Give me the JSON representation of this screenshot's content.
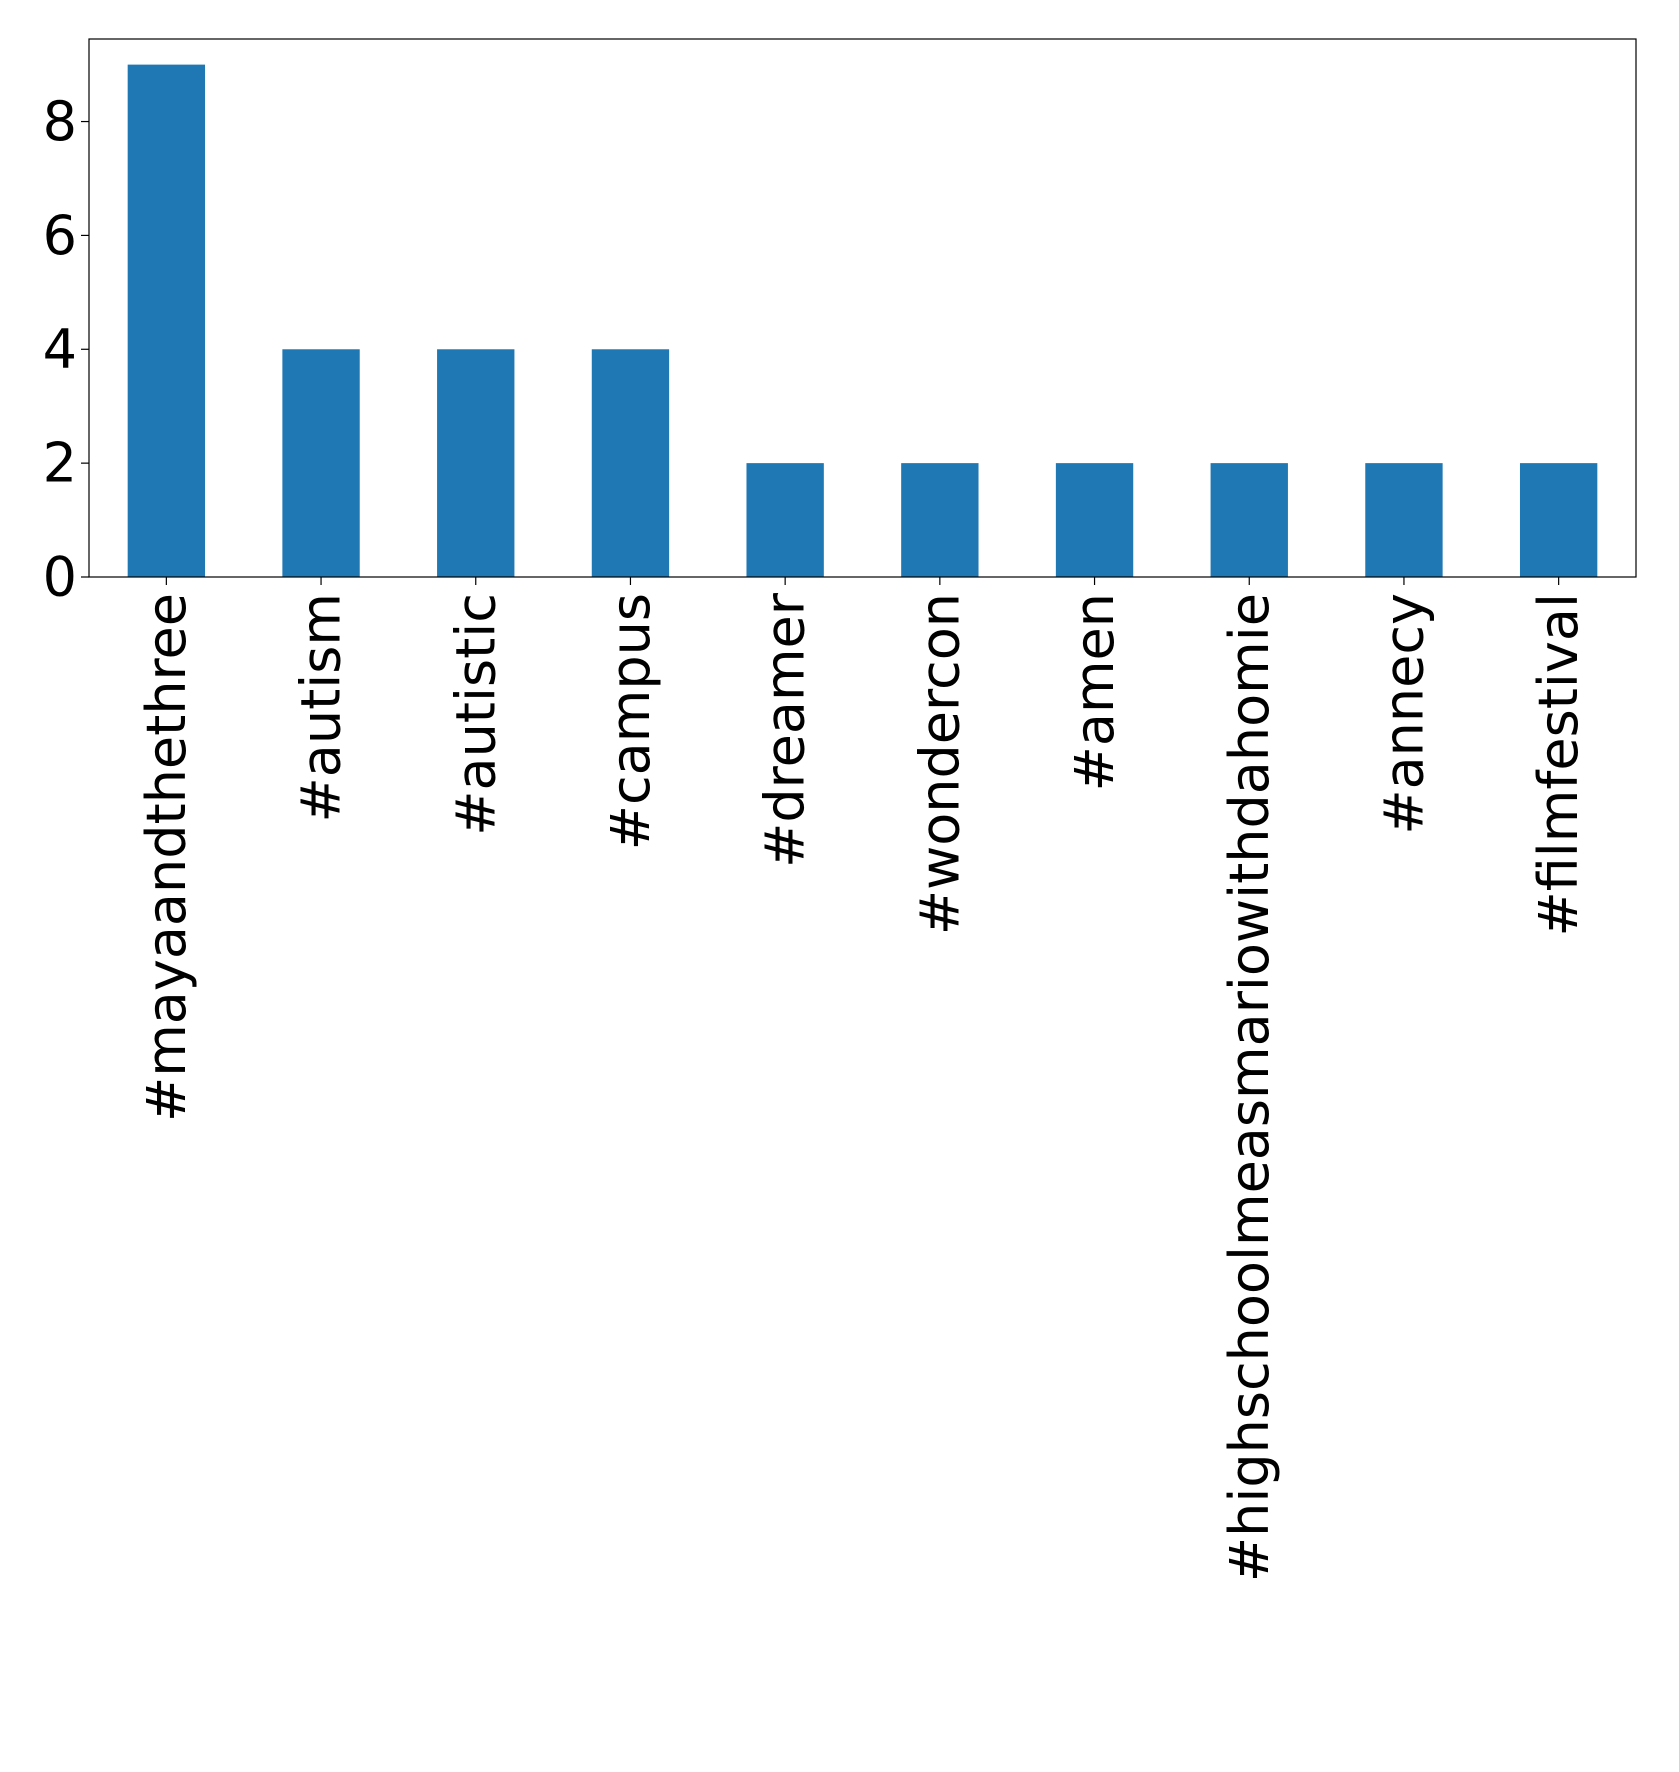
{
  "chart_data": {
    "type": "bar",
    "title": "",
    "xlabel": "",
    "ylabel": "",
    "categories": [
      "#mayaandthethree",
      "#autism",
      "#autistic",
      "#campus",
      "#dreamer",
      "#wondercon",
      "#amen",
      "#highschoolmeasmariowithdahomie",
      "#annecy",
      "#filmfestival"
    ],
    "values": [
      9,
      4,
      4,
      4,
      2,
      2,
      2,
      2,
      2,
      2
    ],
    "ylim": [
      0,
      9.45
    ],
    "y_ticks": [
      0,
      2,
      4,
      6,
      8
    ],
    "grid": false,
    "legend": "none",
    "bar_color": "#1f77b4"
  }
}
